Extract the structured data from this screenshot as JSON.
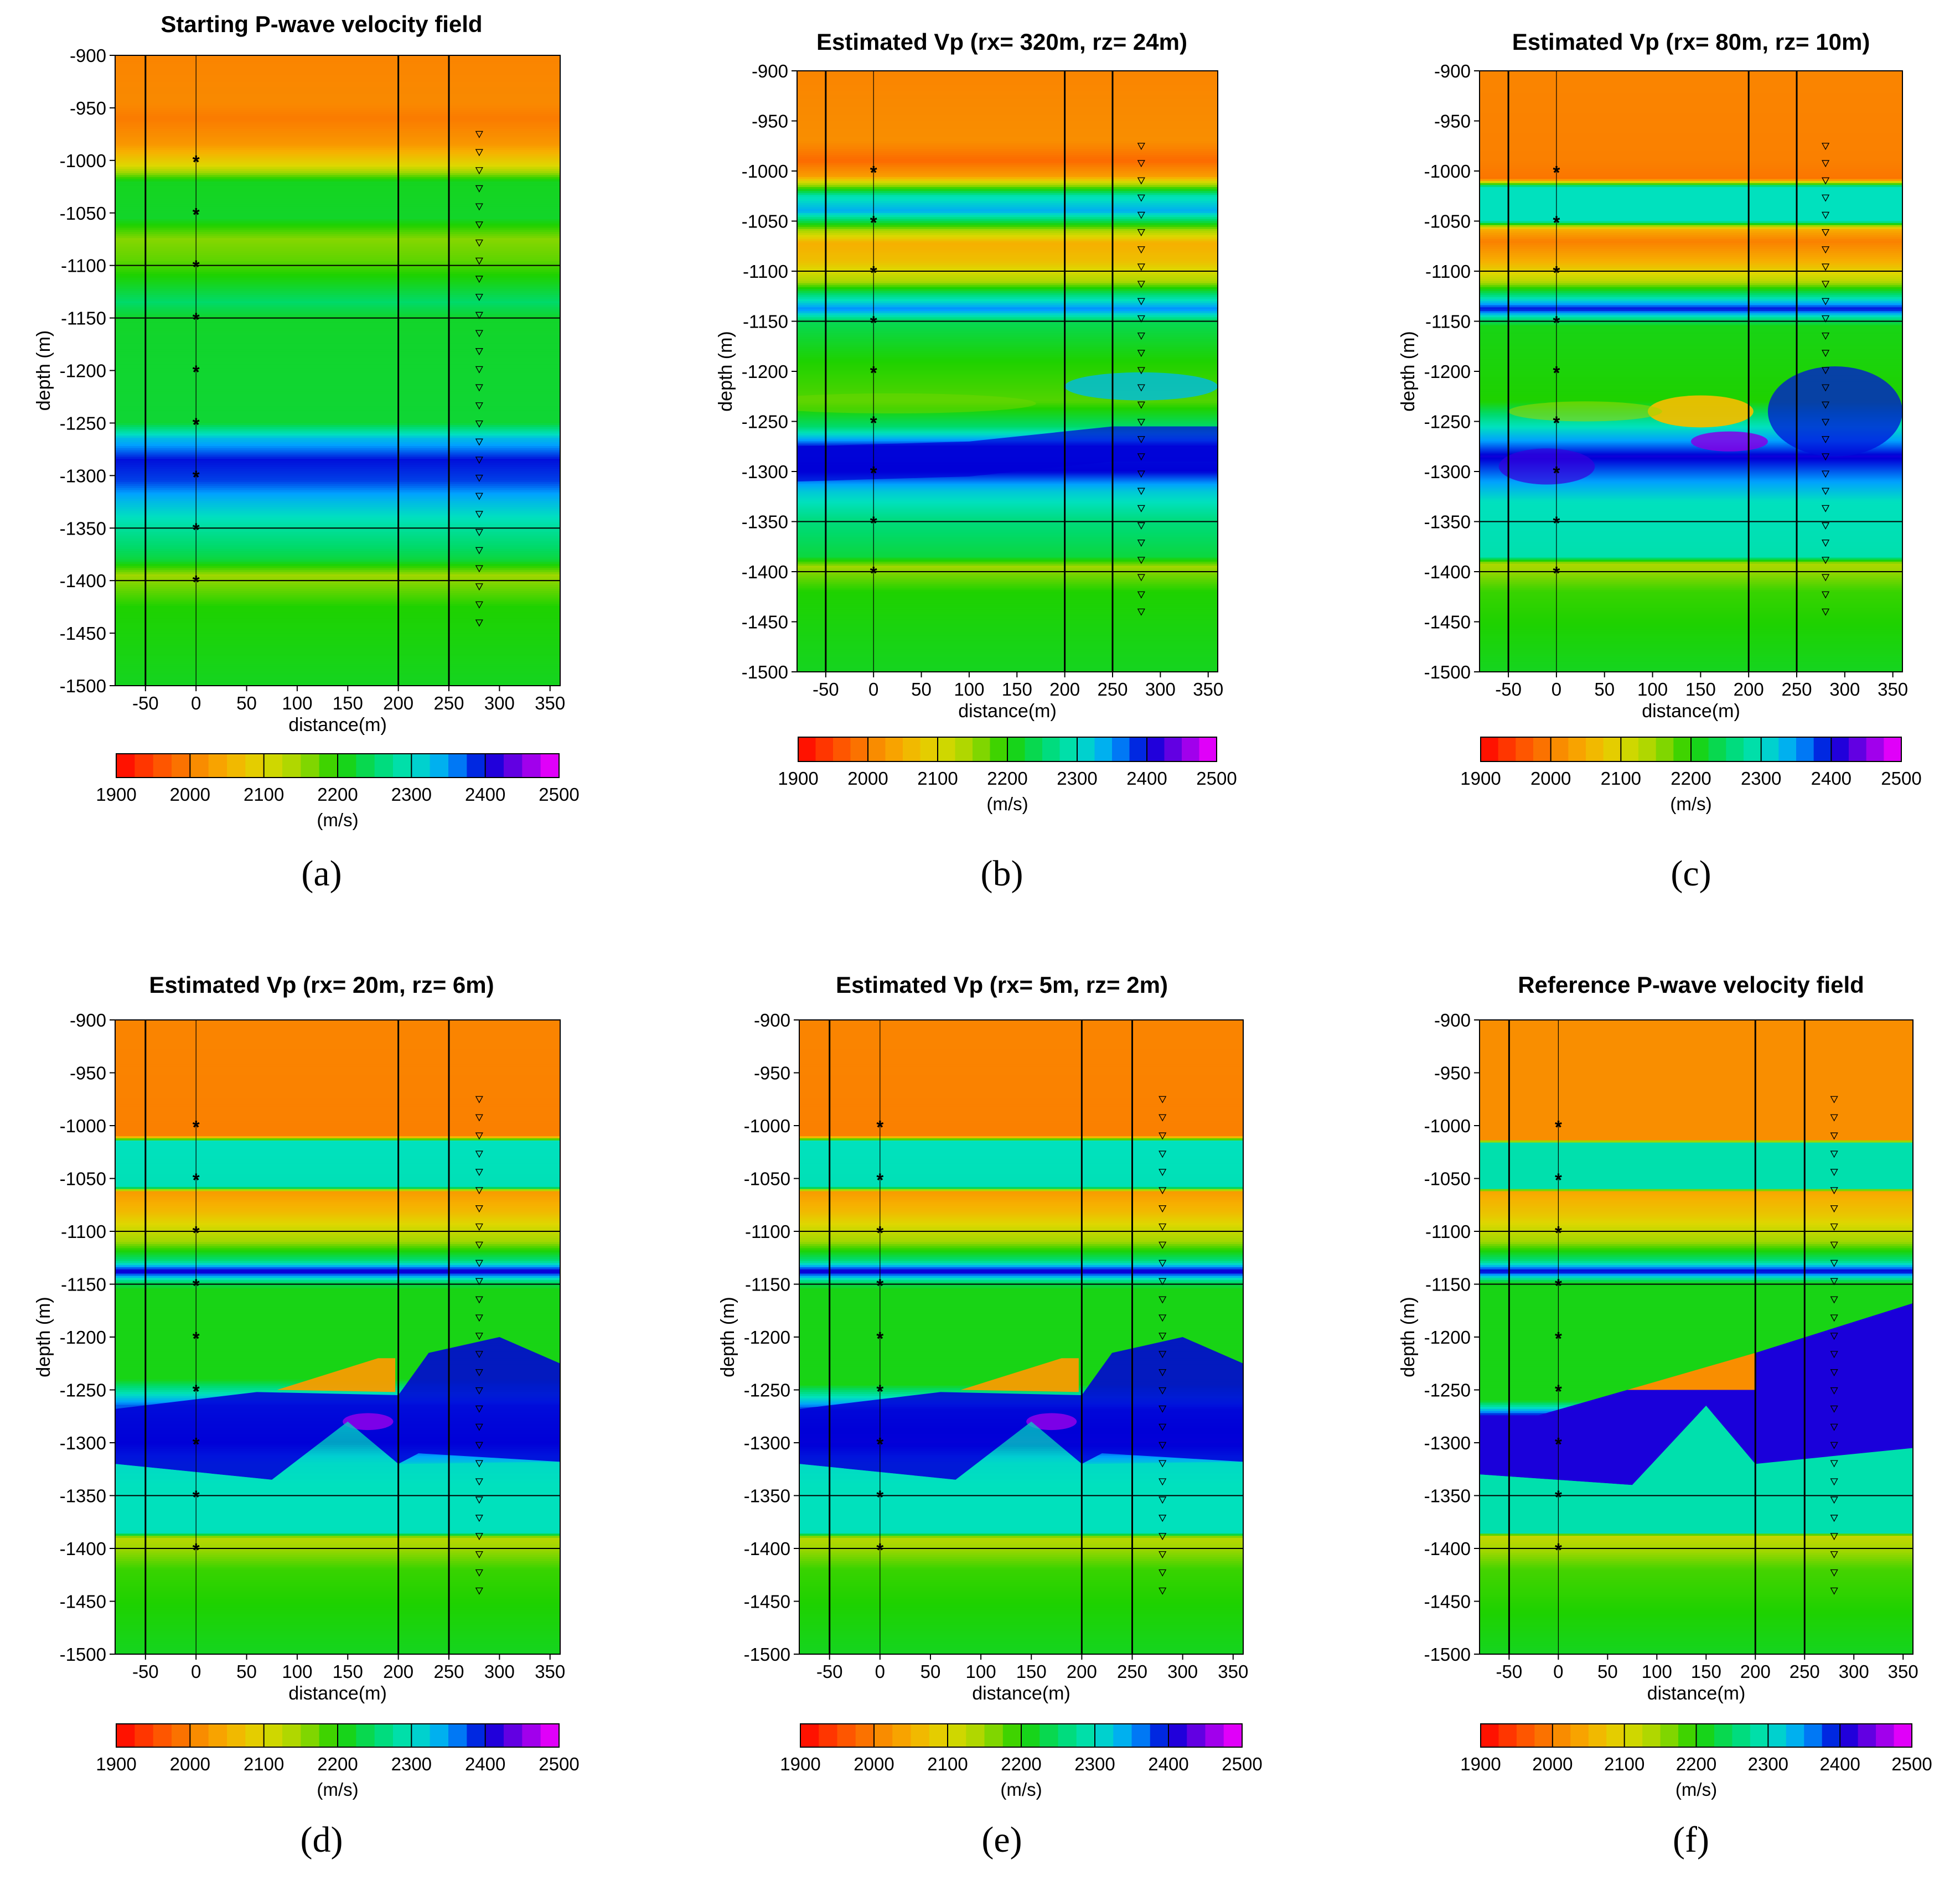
{
  "chart_data": [
    {
      "panel_label": "(a)",
      "title": "Starting P-wave velocity field",
      "type": "heatmap",
      "variant": "starting",
      "xlabel": "distance(m)",
      "ylabel": "depth (m)",
      "xlim": [
        -80,
        360
      ],
      "ylim": [
        -1500,
        -900
      ],
      "xticks": [
        -50,
        0,
        50,
        100,
        150,
        200,
        250,
        300,
        350
      ],
      "yticks": [
        -900,
        -950,
        -1000,
        -1050,
        -1100,
        -1150,
        -1200,
        -1250,
        -1300,
        -1350,
        -1400,
        -1450,
        -1500
      ],
      "colorbar": {
        "min": 1900,
        "max": 2500,
        "ticks": [
          1900,
          2000,
          2100,
          2200,
          2300,
          2400,
          2500
        ],
        "label": "(m/s)"
      },
      "wells_x": [
        -50,
        200,
        250
      ],
      "sources": {
        "x": 0,
        "depths": [
          -1000,
          -1050,
          -1100,
          -1150,
          -1200,
          -1250,
          -1300,
          -1350,
          -1400
        ],
        "symbol": "*"
      },
      "receivers": {
        "x": 280,
        "depth_from": -975,
        "depth_to": -1440,
        "symbol": "∇"
      }
    },
    {
      "panel_label": "(b)",
      "title": "Estimated Vp (rx= 320m, rz= 24m)",
      "type": "heatmap",
      "variant": "est320",
      "xlabel": "distance(m)",
      "ylabel": "depth (m)",
      "xlim": [
        -80,
        360
      ],
      "ylim": [
        -1500,
        -900
      ],
      "xticks": [
        -50,
        0,
        50,
        100,
        150,
        200,
        250,
        300,
        350
      ],
      "yticks": [
        -900,
        -950,
        -1000,
        -1050,
        -1100,
        -1150,
        -1200,
        -1250,
        -1300,
        -1350,
        -1400,
        -1450,
        -1500
      ],
      "colorbar": {
        "min": 1900,
        "max": 2500,
        "ticks": [
          1900,
          2000,
          2100,
          2200,
          2300,
          2400,
          2500
        ],
        "label": "(m/s)"
      },
      "wells_x": [
        -50,
        200,
        250
      ],
      "sources": {
        "x": 0,
        "depths": [
          -1000,
          -1050,
          -1100,
          -1150,
          -1200,
          -1250,
          -1300,
          -1350,
          -1400
        ],
        "symbol": "*"
      },
      "receivers": {
        "x": 280,
        "depth_from": -975,
        "depth_to": -1440,
        "symbol": "∇"
      }
    },
    {
      "panel_label": "(c)",
      "title": "Estimated Vp (rx= 80m, rz= 10m)",
      "type": "heatmap",
      "variant": "est80",
      "xlabel": "distance(m)",
      "ylabel": "depth (m)",
      "xlim": [
        -80,
        360
      ],
      "ylim": [
        -1500,
        -900
      ],
      "xticks": [
        -50,
        0,
        50,
        100,
        150,
        200,
        250,
        300,
        350
      ],
      "yticks": [
        -900,
        -950,
        -1000,
        -1050,
        -1100,
        -1150,
        -1200,
        -1250,
        -1300,
        -1350,
        -1400,
        -1450,
        -1500
      ],
      "colorbar": {
        "min": 1900,
        "max": 2500,
        "ticks": [
          1900,
          2000,
          2100,
          2200,
          2300,
          2400,
          2500
        ],
        "label": "(m/s)"
      },
      "wells_x": [
        -50,
        200,
        250
      ],
      "sources": {
        "x": 0,
        "depths": [
          -1000,
          -1050,
          -1100,
          -1150,
          -1200,
          -1250,
          -1300,
          -1350,
          -1400
        ],
        "symbol": "*"
      },
      "receivers": {
        "x": 280,
        "depth_from": -975,
        "depth_to": -1440,
        "symbol": "∇"
      }
    },
    {
      "panel_label": "(d)",
      "title": "Estimated Vp (rx= 20m, rz= 6m)",
      "type": "heatmap",
      "variant": "est20",
      "xlabel": "distance(m)",
      "ylabel": "depth (m)",
      "xlim": [
        -80,
        360
      ],
      "ylim": [
        -1500,
        -900
      ],
      "xticks": [
        -50,
        0,
        50,
        100,
        150,
        200,
        250,
        300,
        350
      ],
      "yticks": [
        -900,
        -950,
        -1000,
        -1050,
        -1100,
        -1150,
        -1200,
        -1250,
        -1300,
        -1350,
        -1400,
        -1450,
        -1500
      ],
      "colorbar": {
        "min": 1900,
        "max": 2500,
        "ticks": [
          1900,
          2000,
          2100,
          2200,
          2300,
          2400,
          2500
        ],
        "label": "(m/s)"
      },
      "wells_x": [
        -50,
        200,
        250
      ],
      "sources": {
        "x": 0,
        "depths": [
          -1000,
          -1050,
          -1100,
          -1150,
          -1200,
          -1250,
          -1300,
          -1350,
          -1400
        ],
        "symbol": "*"
      },
      "receivers": {
        "x": 280,
        "depth_from": -975,
        "depth_to": -1440,
        "symbol": "∇"
      }
    },
    {
      "panel_label": "(e)",
      "title": "Estimated Vp (rx= 5m, rz= 2m)",
      "type": "heatmap",
      "variant": "est5",
      "xlabel": "distance(m)",
      "ylabel": "depth (m)",
      "xlim": [
        -80,
        360
      ],
      "ylim": [
        -1500,
        -900
      ],
      "xticks": [
        -50,
        0,
        50,
        100,
        150,
        200,
        250,
        300,
        350
      ],
      "yticks": [
        -900,
        -950,
        -1000,
        -1050,
        -1100,
        -1150,
        -1200,
        -1250,
        -1300,
        -1350,
        -1400,
        -1450,
        -1500
      ],
      "colorbar": {
        "min": 1900,
        "max": 2500,
        "ticks": [
          1900,
          2000,
          2100,
          2200,
          2300,
          2400,
          2500
        ],
        "label": "(m/s)"
      },
      "wells_x": [
        -50,
        200,
        250
      ],
      "sources": {
        "x": 0,
        "depths": [
          -1000,
          -1050,
          -1100,
          -1150,
          -1200,
          -1250,
          -1300,
          -1350,
          -1400
        ],
        "symbol": "*"
      },
      "receivers": {
        "x": 280,
        "depth_from": -975,
        "depth_to": -1440,
        "symbol": "∇"
      }
    },
    {
      "panel_label": "(f)",
      "title": "Reference P-wave velocity field",
      "type": "heatmap",
      "variant": "reference",
      "xlabel": "distance(m)",
      "ylabel": "depth (m)",
      "xlim": [
        -80,
        360
      ],
      "ylim": [
        -1500,
        -900
      ],
      "xticks": [
        -50,
        0,
        50,
        100,
        150,
        200,
        250,
        300,
        350
      ],
      "yticks": [
        -900,
        -950,
        -1000,
        -1050,
        -1100,
        -1150,
        -1200,
        -1250,
        -1300,
        -1350,
        -1400,
        -1450,
        -1500
      ],
      "colorbar": {
        "min": 1900,
        "max": 2500,
        "ticks": [
          1900,
          2000,
          2100,
          2200,
          2300,
          2400,
          2500
        ],
        "label": "(m/s)"
      },
      "wells_x": [
        -50,
        200,
        250
      ],
      "sources": {
        "x": 0,
        "depths": [
          -1000,
          -1050,
          -1100,
          -1150,
          -1200,
          -1250,
          -1300,
          -1350,
          -1400
        ],
        "symbol": "*"
      },
      "receivers": {
        "x": 280,
        "depth_from": -975,
        "depth_to": -1440,
        "symbol": "∇"
      }
    }
  ]
}
